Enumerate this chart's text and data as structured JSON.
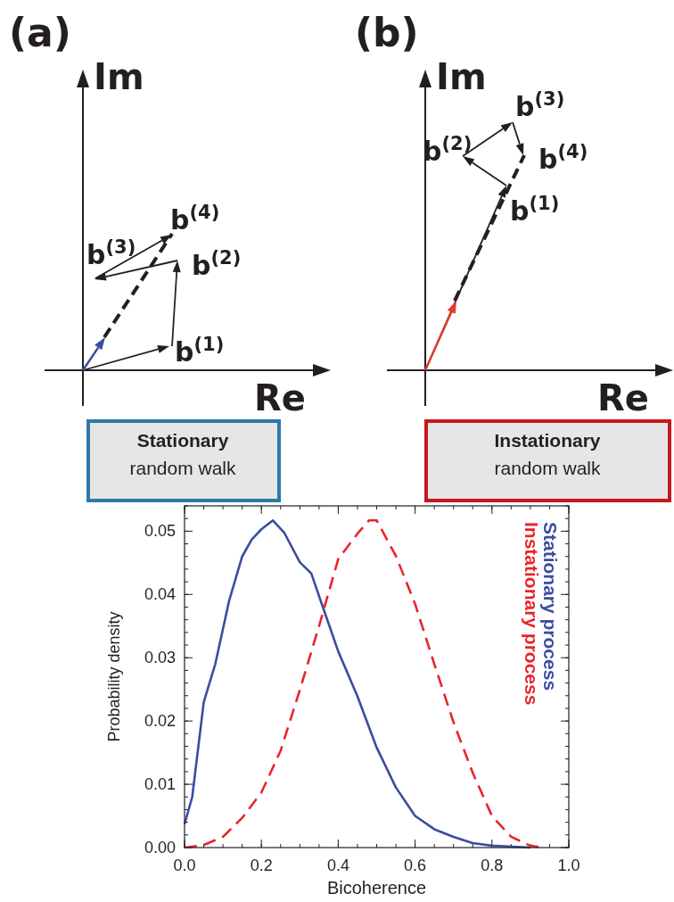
{
  "chart_data": [
    {
      "type": "other",
      "title": "(a)",
      "annotations": [
        "Im",
        "Re",
        "b$^{(1)}$",
        "b$^{(2)}$",
        "b$^{(3)}$",
        "b$^{(4)}$",
        "Stationary",
        "random walk"
      ],
      "color": "#2f78a8"
    },
    {
      "type": "other",
      "title": "(b)",
      "annotations": [
        "Im",
        "Re",
        "b$^{(1)}$",
        "b$^{(2)}$",
        "b$^{(3)}$",
        "b$^{(4)}$",
        "Instationary",
        "random walk"
      ],
      "color": "#c8161d"
    },
    {
      "type": "line",
      "xlabel": "Bicoherence",
      "ylabel": "Probability density",
      "xlim": [
        0,
        1
      ],
      "ylim": [
        0,
        0.054
      ],
      "xticks": [
        {
          "value": 0,
          "label": "0.0"
        },
        {
          "value": 0.2,
          "label": "0.2"
        },
        {
          "value": 0.4,
          "label": "0.4"
        },
        {
          "value": 0.6,
          "label": "0.6"
        },
        {
          "value": 0.8,
          "label": "0.8"
        },
        {
          "value": 1,
          "label": "1.0"
        }
      ],
      "yticks": [
        {
          "value": 0,
          "label": "0.00"
        },
        {
          "value": 0.01,
          "label": "0.01"
        },
        {
          "value": 0.02,
          "label": "0.02"
        },
        {
          "value": 0.03,
          "label": "0.03"
        },
        {
          "value": 0.04,
          "label": "0.04"
        },
        {
          "value": 0.05,
          "label": "0.05"
        }
      ],
      "grid": false,
      "legend": "top right",
      "marker": "none",
      "series": [
        {
          "name": "Stationary process",
          "color": "#3a4da0",
          "line_style": "solid",
          "x": [
            0,
            0.02,
            0.05,
            0.08,
            0.116,
            0.15,
            0.175,
            0.2,
            0.23,
            0.26,
            0.3,
            0.33,
            0.36,
            0.4,
            0.45,
            0.5,
            0.55,
            0.6,
            0.65,
            0.7,
            0.75,
            0.8,
            0.9
          ],
          "values": [
            0.0037,
            0.008,
            0.023,
            0.029,
            0.039,
            0.046,
            0.0487,
            0.0503,
            0.0517,
            0.0497,
            0.0451,
            0.0433,
            0.038,
            0.031,
            0.0239,
            0.0158,
            0.0095,
            0.005,
            0.0029,
            0.0017,
            0.0007,
            0.0003,
            0
          ]
        },
        {
          "name": "Instationary process",
          "color": "#e8252b",
          "line_style": "dashed",
          "x": [
            0,
            0.05,
            0.1,
            0.15,
            0.2,
            0.25,
            0.3,
            0.35,
            0.4,
            0.45,
            0.48,
            0.5,
            0.55,
            0.6,
            0.65,
            0.7,
            0.75,
            0.8,
            0.85,
            0.9,
            0.93
          ],
          "values": [
            0,
            0.0004,
            0.0017,
            0.0047,
            0.0087,
            0.0153,
            0.0249,
            0.035,
            0.0456,
            0.0496,
            0.0517,
            0.0517,
            0.0461,
            0.0385,
            0.029,
            0.0198,
            0.0118,
            0.005,
            0.0017,
            0.0003,
            0
          ]
        }
      ]
    }
  ]
}
